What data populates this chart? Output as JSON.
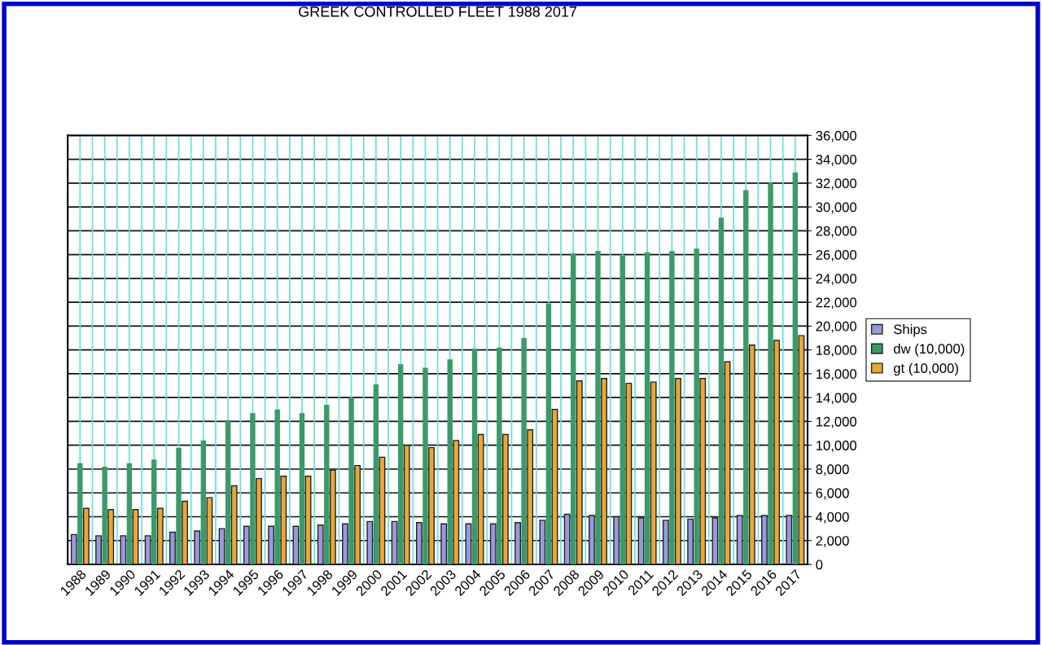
{
  "chart_data": {
    "type": "bar",
    "title": "GREEK CONTROLLED FLEET 1988 2017",
    "categories": [
      "1988",
      "1989",
      "1990",
      "1991",
      "1992",
      "1993",
      "1994",
      "1995",
      "1996",
      "1997",
      "1998",
      "1999",
      "2000",
      "2001",
      "2002",
      "2003",
      "2004",
      "2005",
      "2006",
      "2007",
      "2008",
      "2009",
      "2010",
      "2011",
      "2012",
      "2013",
      "2014",
      "2015",
      "2016",
      "2017"
    ],
    "series": [
      {
        "name": "Ships",
        "color": "#9999dd",
        "values": [
          2500,
          2400,
          2400,
          2400,
          2700,
          2800,
          3000,
          3200,
          3200,
          3200,
          3300,
          3400,
          3600,
          3600,
          3500,
          3400,
          3400,
          3400,
          3500,
          3700,
          4200,
          4100,
          4000,
          3900,
          3700,
          3800,
          3900,
          4100,
          4100,
          4100
        ]
      },
      {
        "name": "dw (10,000)",
        "color": "#3a9a6a",
        "values": [
          8500,
          8200,
          8500,
          8800,
          9800,
          10400,
          12100,
          12700,
          13000,
          12700,
          13400,
          14000,
          15100,
          16800,
          16500,
          17200,
          18100,
          18200,
          19000,
          21900,
          26100,
          26300,
          25900,
          26200,
          26300,
          26500,
          29100,
          31400,
          32000,
          32900
        ]
      },
      {
        "name": "gt (10,000)",
        "color": "#e8a838",
        "values": [
          4700,
          4600,
          4600,
          4700,
          5300,
          5600,
          6600,
          7200,
          7400,
          7400,
          7900,
          8300,
          9000,
          10000,
          9800,
          10400,
          10900,
          10900,
          11300,
          13000,
          15400,
          15600,
          15200,
          15300,
          15600,
          15600,
          17000,
          18400,
          18800,
          19200
        ]
      }
    ],
    "ylim": [
      0,
      36000
    ],
    "yticks": [
      {
        "value": 0,
        "label": "0"
      },
      {
        "value": 2000,
        "label": "2,000"
      },
      {
        "value": 4000,
        "label": "4,000"
      },
      {
        "value": 6000,
        "label": "6,000"
      },
      {
        "value": 8000,
        "label": "8,000"
      },
      {
        "value": 10000,
        "label": "10,000"
      },
      {
        "value": 12000,
        "label": "12,000"
      },
      {
        "value": 14000,
        "label": "14,000"
      },
      {
        "value": 16000,
        "label": "16,000"
      },
      {
        "value": 18000,
        "label": "18,000"
      },
      {
        "value": 20000,
        "label": "20,000"
      },
      {
        "value": 22000,
        "label": "22,000"
      },
      {
        "value": 24000,
        "label": "24,000"
      },
      {
        "value": 26000,
        "label": "26,000"
      },
      {
        "value": 28000,
        "label": "28,000"
      },
      {
        "value": 30000,
        "label": "30,000"
      },
      {
        "value": 32000,
        "label": "32,000"
      },
      {
        "value": 34000,
        "label": "34,000"
      },
      {
        "value": 36000,
        "label": "36,000"
      }
    ],
    "grid": true,
    "legend": "right"
  }
}
